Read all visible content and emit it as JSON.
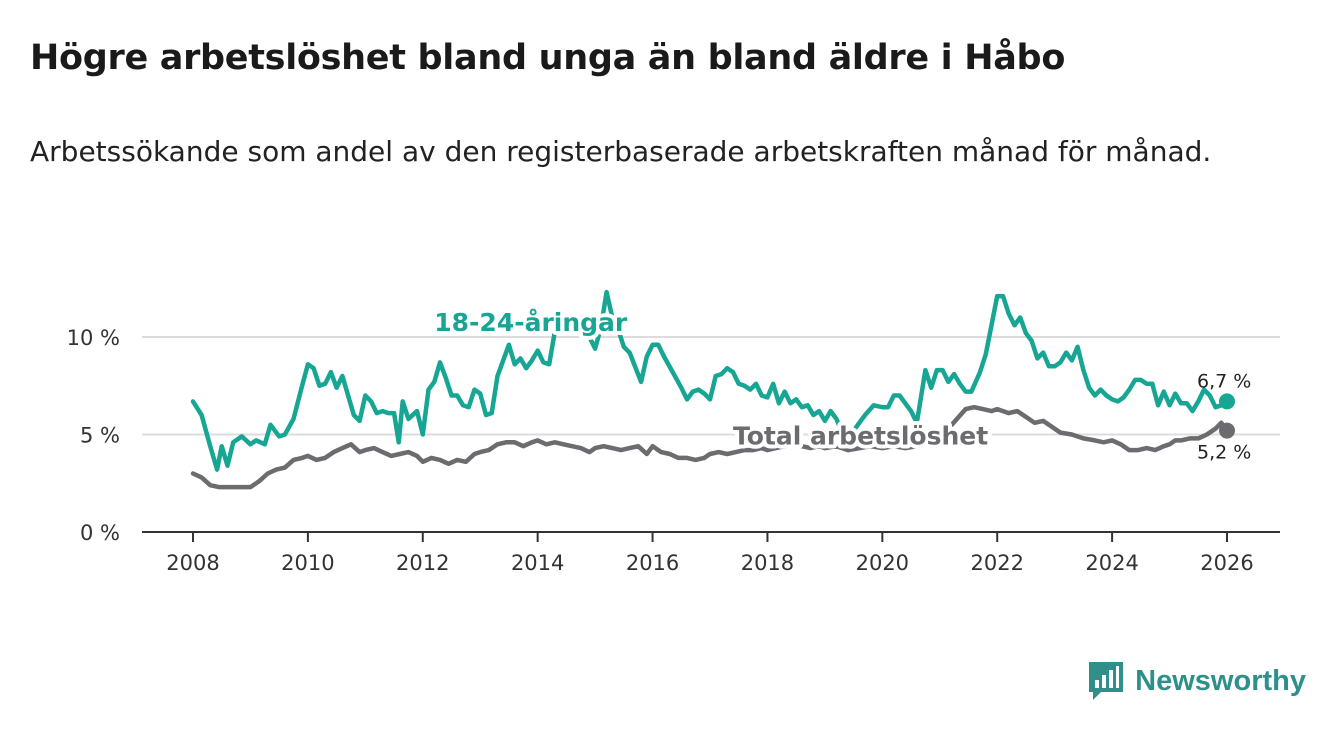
{
  "title": "Högre arbetslöshet bland unga än bland äldre i Håbo",
  "subtitle": "Arbetssökande som andel av den registerbaserade arbetskraften månad för månad.",
  "brand": {
    "name": "Newsworthy",
    "color": "#2f8f8a",
    "icon": "bar-chart-logo-icon"
  },
  "chart_data": {
    "type": "line",
    "title": "Högre arbetslöshet bland unga än bland äldre i Håbo",
    "xlabel": "",
    "ylabel": "",
    "xlim": [
      2007.5,
      2026.8
    ],
    "ylim": [
      0,
      10
    ],
    "grid": true,
    "x_ticks": [
      "2008",
      "2010",
      "2012",
      "2014",
      "2016",
      "2018",
      "2020",
      "2022",
      "2024",
      "2026"
    ],
    "y_ticks": [
      "0 %",
      "5 %",
      "10 %"
    ],
    "y_tick_values": [
      0,
      5,
      10
    ],
    "series": [
      {
        "name": "18-24-åringar",
        "color": "#17a594",
        "end_label": "6,7 %",
        "points": [
          [
            2008.0,
            6.7
          ],
          [
            2008.15,
            6.0
          ],
          [
            2008.3,
            4.4
          ],
          [
            2008.42,
            3.2
          ],
          [
            2008.5,
            4.4
          ],
          [
            2008.6,
            3.4
          ],
          [
            2008.7,
            4.6
          ],
          [
            2008.85,
            4.9
          ],
          [
            2009.0,
            4.5
          ],
          [
            2009.1,
            4.7
          ],
          [
            2009.25,
            4.5
          ],
          [
            2009.35,
            5.5
          ],
          [
            2009.5,
            4.9
          ],
          [
            2009.6,
            5.0
          ],
          [
            2009.75,
            5.8
          ],
          [
            2009.9,
            7.5
          ],
          [
            2010.0,
            8.6
          ],
          [
            2010.1,
            8.4
          ],
          [
            2010.2,
            7.5
          ],
          [
            2010.3,
            7.6
          ],
          [
            2010.4,
            8.2
          ],
          [
            2010.5,
            7.4
          ],
          [
            2010.6,
            8.0
          ],
          [
            2010.7,
            7.0
          ],
          [
            2010.8,
            6.0
          ],
          [
            2010.9,
            5.7
          ],
          [
            2011.0,
            7.0
          ],
          [
            2011.1,
            6.7
          ],
          [
            2011.2,
            6.1
          ],
          [
            2011.3,
            6.2
          ],
          [
            2011.4,
            6.1
          ],
          [
            2011.5,
            6.1
          ],
          [
            2011.58,
            4.6
          ],
          [
            2011.65,
            6.7
          ],
          [
            2011.75,
            5.8
          ],
          [
            2011.9,
            6.2
          ],
          [
            2012.0,
            5.0
          ],
          [
            2012.1,
            7.3
          ],
          [
            2012.2,
            7.7
          ],
          [
            2012.3,
            8.7
          ],
          [
            2012.4,
            7.9
          ],
          [
            2012.5,
            7.0
          ],
          [
            2012.6,
            7.0
          ],
          [
            2012.7,
            6.5
          ],
          [
            2012.8,
            6.4
          ],
          [
            2012.9,
            7.3
          ],
          [
            2013.0,
            7.1
          ],
          [
            2013.1,
            6.0
          ],
          [
            2013.2,
            6.1
          ],
          [
            2013.3,
            8.0
          ],
          [
            2013.5,
            9.6
          ],
          [
            2013.6,
            8.6
          ],
          [
            2013.7,
            8.9
          ],
          [
            2013.8,
            8.4
          ],
          [
            2013.9,
            8.8
          ],
          [
            2014.0,
            9.3
          ],
          [
            2014.1,
            8.7
          ],
          [
            2014.2,
            8.6
          ],
          [
            2014.3,
            10.3
          ],
          [
            2014.5,
            10.6
          ],
          [
            2014.6,
            10.5
          ],
          [
            2014.75,
            10.9
          ],
          [
            2014.9,
            10.0
          ],
          [
            2015.0,
            9.4
          ],
          [
            2015.1,
            10.5
          ],
          [
            2015.2,
            12.3
          ],
          [
            2015.3,
            11.0
          ],
          [
            2015.4,
            10.4
          ],
          [
            2015.5,
            9.5
          ],
          [
            2015.6,
            9.2
          ],
          [
            2015.8,
            7.7
          ],
          [
            2015.9,
            9.0
          ],
          [
            2016.0,
            9.6
          ],
          [
            2016.1,
            9.6
          ],
          [
            2016.2,
            9.0
          ],
          [
            2016.35,
            8.2
          ],
          [
            2016.5,
            7.4
          ],
          [
            2016.6,
            6.8
          ],
          [
            2016.7,
            7.2
          ],
          [
            2016.8,
            7.3
          ],
          [
            2016.9,
            7.1
          ],
          [
            2017.0,
            6.8
          ],
          [
            2017.1,
            8.0
          ],
          [
            2017.2,
            8.1
          ],
          [
            2017.3,
            8.4
          ],
          [
            2017.4,
            8.2
          ],
          [
            2017.5,
            7.6
          ],
          [
            2017.6,
            7.5
          ],
          [
            2017.7,
            7.3
          ],
          [
            2017.8,
            7.6
          ],
          [
            2017.9,
            7.0
          ],
          [
            2018.0,
            6.9
          ],
          [
            2018.1,
            7.6
          ],
          [
            2018.2,
            6.6
          ],
          [
            2018.3,
            7.2
          ],
          [
            2018.4,
            6.6
          ],
          [
            2018.5,
            6.8
          ],
          [
            2018.6,
            6.4
          ],
          [
            2018.7,
            6.5
          ],
          [
            2018.8,
            6.0
          ],
          [
            2018.9,
            6.2
          ],
          [
            2019.0,
            5.7
          ],
          [
            2019.1,
            6.2
          ],
          [
            2019.2,
            5.8
          ],
          [
            2019.3,
            5.1
          ],
          [
            2019.4,
            5.3
          ],
          [
            2019.5,
            5.2
          ],
          [
            2019.7,
            6.0
          ],
          [
            2019.85,
            6.5
          ],
          [
            2020.0,
            6.4
          ],
          [
            2020.1,
            6.4
          ],
          [
            2020.2,
            7.0
          ],
          [
            2020.3,
            7.0
          ],
          [
            2020.4,
            6.6
          ],
          [
            2020.5,
            6.2
          ],
          [
            2020.6,
            5.6
          ],
          [
            2020.75,
            8.3
          ],
          [
            2020.85,
            7.4
          ],
          [
            2020.95,
            8.3
          ],
          [
            2021.05,
            8.3
          ],
          [
            2021.15,
            7.7
          ],
          [
            2021.25,
            8.1
          ],
          [
            2021.35,
            7.6
          ],
          [
            2021.45,
            7.2
          ],
          [
            2021.55,
            7.2
          ],
          [
            2021.7,
            8.2
          ],
          [
            2021.8,
            9.1
          ],
          [
            2021.9,
            10.6
          ],
          [
            2022.0,
            12.1
          ],
          [
            2022.1,
            12.1
          ],
          [
            2022.2,
            11.2
          ],
          [
            2022.3,
            10.6
          ],
          [
            2022.4,
            11.0
          ],
          [
            2022.5,
            10.2
          ],
          [
            2022.6,
            9.8
          ],
          [
            2022.7,
            8.9
          ],
          [
            2022.8,
            9.2
          ],
          [
            2022.9,
            8.5
          ],
          [
            2023.0,
            8.5
          ],
          [
            2023.1,
            8.7
          ],
          [
            2023.2,
            9.2
          ],
          [
            2023.3,
            8.8
          ],
          [
            2023.4,
            9.5
          ],
          [
            2023.5,
            8.3
          ],
          [
            2023.6,
            7.4
          ],
          [
            2023.7,
            7.0
          ],
          [
            2023.8,
            7.3
          ],
          [
            2023.9,
            7.0
          ],
          [
            2024.0,
            6.8
          ],
          [
            2024.1,
            6.7
          ],
          [
            2024.2,
            6.9
          ],
          [
            2024.3,
            7.3
          ],
          [
            2024.4,
            7.8
          ],
          [
            2024.5,
            7.8
          ],
          [
            2024.6,
            7.6
          ],
          [
            2024.7,
            7.6
          ],
          [
            2024.8,
            6.5
          ],
          [
            2024.9,
            7.2
          ],
          [
            2025.0,
            6.5
          ],
          [
            2025.1,
            7.1
          ],
          [
            2025.2,
            6.6
          ],
          [
            2025.3,
            6.6
          ],
          [
            2025.4,
            6.2
          ],
          [
            2025.5,
            6.7
          ],
          [
            2025.6,
            7.3
          ],
          [
            2025.7,
            7.0
          ],
          [
            2025.8,
            6.4
          ],
          [
            2025.9,
            6.5
          ],
          [
            2026.0,
            6.7
          ]
        ]
      },
      {
        "name": "Total arbetslöshet",
        "color": "#6b6b70",
        "end_label": "5,2 %",
        "points": [
          [
            2008.0,
            3.0
          ],
          [
            2008.15,
            2.8
          ],
          [
            2008.3,
            2.4
          ],
          [
            2008.45,
            2.3
          ],
          [
            2008.6,
            2.3
          ],
          [
            2008.8,
            2.3
          ],
          [
            2009.0,
            2.3
          ],
          [
            2009.15,
            2.6
          ],
          [
            2009.3,
            3.0
          ],
          [
            2009.45,
            3.2
          ],
          [
            2009.6,
            3.3
          ],
          [
            2009.75,
            3.7
          ],
          [
            2009.9,
            3.8
          ],
          [
            2010.0,
            3.9
          ],
          [
            2010.15,
            3.7
          ],
          [
            2010.3,
            3.8
          ],
          [
            2010.45,
            4.1
          ],
          [
            2010.6,
            4.3
          ],
          [
            2010.75,
            4.5
          ],
          [
            2010.9,
            4.1
          ],
          [
            2011.0,
            4.2
          ],
          [
            2011.15,
            4.3
          ],
          [
            2011.3,
            4.1
          ],
          [
            2011.45,
            3.9
          ],
          [
            2011.6,
            4.0
          ],
          [
            2011.75,
            4.1
          ],
          [
            2011.9,
            3.9
          ],
          [
            2012.0,
            3.6
          ],
          [
            2012.15,
            3.8
          ],
          [
            2012.3,
            3.7
          ],
          [
            2012.45,
            3.5
          ],
          [
            2012.6,
            3.7
          ],
          [
            2012.75,
            3.6
          ],
          [
            2012.9,
            4.0
          ],
          [
            2013.0,
            4.1
          ],
          [
            2013.15,
            4.2
          ],
          [
            2013.3,
            4.5
          ],
          [
            2013.45,
            4.6
          ],
          [
            2013.6,
            4.6
          ],
          [
            2013.75,
            4.4
          ],
          [
            2013.9,
            4.6
          ],
          [
            2014.0,
            4.7
          ],
          [
            2014.15,
            4.5
          ],
          [
            2014.3,
            4.6
          ],
          [
            2014.45,
            4.5
          ],
          [
            2014.6,
            4.4
          ],
          [
            2014.75,
            4.3
          ],
          [
            2014.9,
            4.1
          ],
          [
            2015.0,
            4.3
          ],
          [
            2015.15,
            4.4
          ],
          [
            2015.3,
            4.3
          ],
          [
            2015.45,
            4.2
          ],
          [
            2015.6,
            4.3
          ],
          [
            2015.75,
            4.4
          ],
          [
            2015.9,
            4.0
          ],
          [
            2016.0,
            4.4
          ],
          [
            2016.15,
            4.1
          ],
          [
            2016.3,
            4.0
          ],
          [
            2016.45,
            3.8
          ],
          [
            2016.6,
            3.8
          ],
          [
            2016.75,
            3.7
          ],
          [
            2016.9,
            3.8
          ],
          [
            2017.0,
            4.0
          ],
          [
            2017.15,
            4.1
          ],
          [
            2017.3,
            4.0
          ],
          [
            2017.45,
            4.1
          ],
          [
            2017.6,
            4.2
          ],
          [
            2017.75,
            4.2
          ],
          [
            2017.9,
            4.3
          ],
          [
            2018.0,
            4.2
          ],
          [
            2018.15,
            4.3
          ],
          [
            2018.3,
            4.4
          ],
          [
            2018.45,
            4.5
          ],
          [
            2018.6,
            4.4
          ],
          [
            2018.75,
            4.3
          ],
          [
            2018.9,
            4.4
          ],
          [
            2019.0,
            4.3
          ],
          [
            2019.2,
            4.4
          ],
          [
            2019.4,
            4.2
          ],
          [
            2019.6,
            4.3
          ],
          [
            2019.8,
            4.4
          ],
          [
            2020.0,
            4.3
          ],
          [
            2020.2,
            4.4
          ],
          [
            2020.4,
            4.3
          ],
          [
            2020.6,
            4.4
          ],
          [
            2020.8,
            4.6
          ],
          [
            2021.0,
            4.7
          ],
          [
            2021.15,
            5.3
          ],
          [
            2021.3,
            5.8
          ],
          [
            2021.45,
            6.3
          ],
          [
            2021.6,
            6.4
          ],
          [
            2021.75,
            6.3
          ],
          [
            2021.9,
            6.2
          ],
          [
            2022.0,
            6.3
          ],
          [
            2022.2,
            6.1
          ],
          [
            2022.35,
            6.2
          ],
          [
            2022.5,
            5.9
          ],
          [
            2022.65,
            5.6
          ],
          [
            2022.8,
            5.7
          ],
          [
            2022.95,
            5.4
          ],
          [
            2023.1,
            5.1
          ],
          [
            2023.3,
            5.0
          ],
          [
            2023.5,
            4.8
          ],
          [
            2023.7,
            4.7
          ],
          [
            2023.85,
            4.6
          ],
          [
            2024.0,
            4.7
          ],
          [
            2024.15,
            4.5
          ],
          [
            2024.3,
            4.2
          ],
          [
            2024.45,
            4.2
          ],
          [
            2024.6,
            4.3
          ],
          [
            2024.75,
            4.2
          ],
          [
            2024.9,
            4.4
          ],
          [
            2025.0,
            4.5
          ],
          [
            2025.1,
            4.7
          ],
          [
            2025.2,
            4.7
          ],
          [
            2025.35,
            4.8
          ],
          [
            2025.5,
            4.8
          ],
          [
            2025.65,
            5.0
          ],
          [
            2025.8,
            5.3
          ],
          [
            2025.9,
            5.6
          ],
          [
            2026.0,
            5.2
          ]
        ]
      }
    ],
    "annotations": [
      {
        "text": "18-24-åringar",
        "x": 2012.2,
        "y": 10.3,
        "series": 0
      },
      {
        "text": "Total arbetslöshet",
        "x": 2017.4,
        "y": 4.5,
        "series": 1
      }
    ]
  }
}
